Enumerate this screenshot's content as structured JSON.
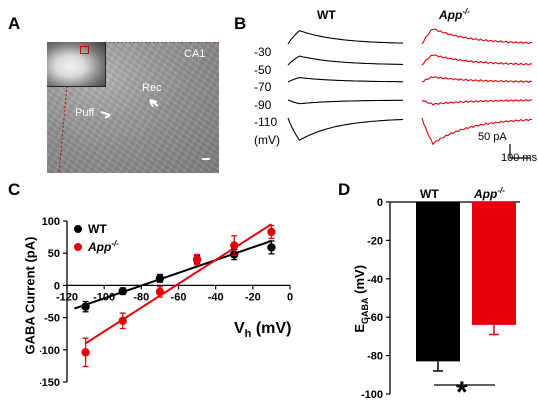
{
  "panels": {
    "A": {
      "letter": "A",
      "region_label": "CA1",
      "puff_label": "Puff",
      "rec_label": "Rec"
    },
    "B": {
      "letter": "B",
      "wt_title": "WT",
      "app_title_main": "App",
      "app_title_sup": "-/-",
      "voltages": [
        "-30",
        "-50",
        "-70",
        "-90",
        "-110"
      ],
      "unit": "(mV)",
      "scale_current": "50 pA",
      "scale_time": "100 ms",
      "colors": {
        "wt": "#000000",
        "app": "#e8000b"
      }
    },
    "C": {
      "letter": "C",
      "legend_wt": "WT",
      "legend_app_main": "App",
      "legend_app_sup": "-/-",
      "ylabel": "GABA Current (pA)",
      "xlabel_main": "V",
      "xlabel_sub": "h",
      "xlabel_unit": " (mV)"
    },
    "D": {
      "letter": "D",
      "legend_wt": "WT",
      "legend_app_main": "App",
      "legend_app_sup": "-/-",
      "ylabel_main": "E",
      "ylabel_sub": "GABA",
      "ylabel_unit": " (mV)",
      "significance": "*"
    }
  },
  "chart_data": [
    {
      "type": "scatter",
      "panel": "C",
      "xlabel": "Vh (mV)",
      "ylabel": "GABA Current (pA)",
      "xlim": [
        -120,
        0
      ],
      "ylim": [
        -150,
        100
      ],
      "xticks": [
        "-120",
        "-100",
        "-80",
        "-60",
        "-40",
        "-20",
        "0"
      ],
      "yticks": [
        "100",
        "50",
        "0",
        "-50",
        "-100",
        "-150"
      ],
      "x": [
        -110,
        -90,
        -70,
        -50,
        -30,
        -10
      ],
      "series": [
        {
          "name": "WT",
          "color": "#000000",
          "y": [
            -33,
            -9,
            11,
            40,
            48,
            59
          ],
          "err": [
            8,
            5,
            6,
            6,
            8,
            10
          ],
          "fit": [
            [
              -116,
              -36
            ],
            [
              -10,
              69
            ]
          ]
        },
        {
          "name": "App-/-",
          "color": "#e8000b",
          "y": [
            -104,
            -55,
            -10,
            40,
            62,
            83
          ],
          "err": [
            22,
            12,
            8,
            8,
            15,
            10
          ],
          "fit": [
            [
              -110,
              -90
            ],
            [
              -10,
              95
            ]
          ]
        }
      ],
      "legend": "top-left"
    },
    {
      "type": "bar",
      "panel": "D",
      "ylabel": "EGABA (mV)",
      "categories": [
        "WT",
        "App-/-"
      ],
      "values": [
        -83,
        -64
      ],
      "err": [
        5,
        5
      ],
      "colors": [
        "#000000",
        "#e8000b"
      ],
      "ylim": [
        -100,
        0
      ],
      "yticks": [
        "0",
        "-20",
        "-40",
        "-60",
        "-80",
        "-100"
      ]
    }
  ]
}
